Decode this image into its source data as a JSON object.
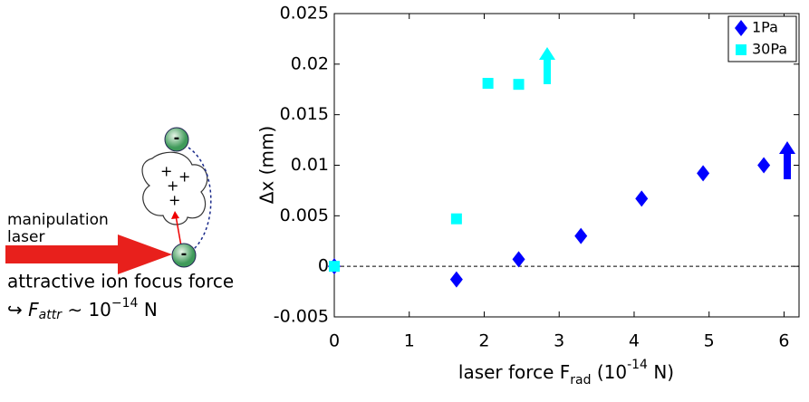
{
  "chart_data": {
    "type": "scatter",
    "ylabel": "Δx (mm)",
    "xlabel": {
      "main": "laser force F",
      "sub": "rad",
      "open": "(10",
      "sup": "-14",
      "close": "N)"
    },
    "xlim": [
      0,
      6.2
    ],
    "ylim": [
      -0.005,
      0.025
    ],
    "xticks": [
      0,
      1,
      2,
      3,
      4,
      5,
      6
    ],
    "yticks": [
      0.025,
      0.02,
      0.015,
      0.01,
      0.005,
      0,
      -0.005
    ],
    "series": [
      {
        "name": "1Pa",
        "color": "#0000ff",
        "marker": "diamond",
        "x": [
          0,
          1.63,
          2.46,
          3.29,
          4.1,
          4.92,
          5.73
        ],
        "values": [
          0,
          -0.0013,
          0.0007,
          0.003,
          0.0067,
          0.0092,
          0.01
        ]
      },
      {
        "name": "30Pa",
        "color": "#00ffff",
        "marker": "square",
        "x": [
          0,
          1.63,
          2.05,
          2.46
        ],
        "values": [
          0,
          0.0047,
          0.0181,
          0.018
        ]
      }
    ],
    "legend": "top-right"
  },
  "diagram": {
    "laser": [
      "manipulation",
      "laser"
    ],
    "caption": "attractive ion focus force",
    "formula": {
      "hook": "↪",
      "f": "F",
      "sub": "attr",
      "rel": "∼ 10",
      "sup": "−14",
      "unit": "N"
    }
  }
}
